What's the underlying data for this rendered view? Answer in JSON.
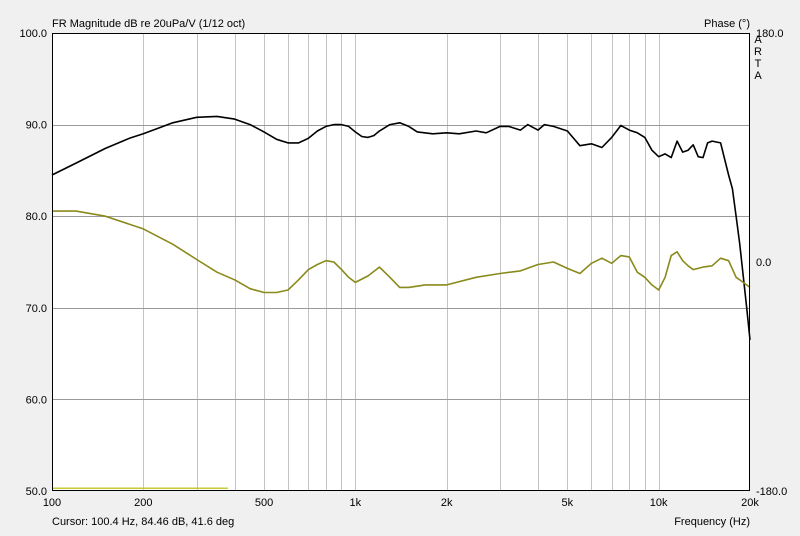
{
  "chart_data": {
    "type": "line",
    "title": "FR Magnitude dB re 20uPa/V (1/12 oct)",
    "right_axis_title": "Phase (°)",
    "watermark": "ARTA",
    "xlabel": "Frequency (Hz)",
    "xscale": "log",
    "xlim": [
      100,
      20000
    ],
    "ylim": [
      50,
      100
    ],
    "y2lim": [
      -180,
      180
    ],
    "grid": true,
    "cursor_readout": "Cursor: 100.4 Hz, 84.46 dB, 41.6 deg",
    "x_ticks": [
      {
        "value": 100,
        "label": "100"
      },
      {
        "value": 200,
        "label": "200"
      },
      {
        "value": 500,
        "label": "500"
      },
      {
        "value": 1000,
        "label": "1k"
      },
      {
        "value": 2000,
        "label": "2k"
      },
      {
        "value": 5000,
        "label": "5k"
      },
      {
        "value": 10000,
        "label": "10k"
      },
      {
        "value": 20000,
        "label": "20k"
      }
    ],
    "y_ticks": [
      {
        "value": 100,
        "label": "100.0"
      },
      {
        "value": 90,
        "label": "90.0"
      },
      {
        "value": 80,
        "label": "80.0"
      },
      {
        "value": 70,
        "label": "70.0"
      },
      {
        "value": 60,
        "label": "60.0"
      },
      {
        "value": 50,
        "label": "50.0"
      }
    ],
    "y2_ticks": [
      {
        "value": 180,
        "label": "180.0"
      },
      {
        "value": 0,
        "label": "0.0"
      },
      {
        "value": -180,
        "label": "-180.0"
      }
    ],
    "colors": {
      "background": "#ffffff",
      "grid": "#c4c4c4",
      "magnitude": "#000000",
      "phase": "#8a8a1c",
      "marker": "#c8c832"
    },
    "series": [
      {
        "axis": "left",
        "color": "#000000",
        "x": [
          100,
          120,
          150,
          180,
          200,
          250,
          300,
          350,
          400,
          450,
          500,
          550,
          600,
          650,
          700,
          750,
          800,
          850,
          900,
          950,
          1000,
          1050,
          1100,
          1150,
          1200,
          1300,
          1400,
          1500,
          1600,
          1800,
          2000,
          2200,
          2500,
          2700,
          3000,
          3200,
          3500,
          3700,
          4000,
          4200,
          4500,
          5000,
          5500,
          6000,
          6500,
          7000,
          7500,
          8000,
          8500,
          9000,
          9500,
          10000,
          10500,
          11000,
          11500,
          12000,
          12500,
          13000,
          13500,
          14000,
          14500,
          15000,
          16000,
          17000,
          17500,
          18000,
          18500,
          19000,
          19500,
          20000
        ],
        "y": [
          84.5,
          85.8,
          87.4,
          88.5,
          89.0,
          90.2,
          90.8,
          90.9,
          90.6,
          90.0,
          89.2,
          88.4,
          88.0,
          88.0,
          88.5,
          89.3,
          89.8,
          90.0,
          90.0,
          89.8,
          89.2,
          88.7,
          88.6,
          88.8,
          89.3,
          90.0,
          90.2,
          89.8,
          89.2,
          89.0,
          89.1,
          89.0,
          89.3,
          89.1,
          89.8,
          89.8,
          89.4,
          90.0,
          89.4,
          90.0,
          89.8,
          89.3,
          87.7,
          87.9,
          87.5,
          88.6,
          89.9,
          89.4,
          89.1,
          88.6,
          87.2,
          86.5,
          86.8,
          86.4,
          88.2,
          87.0,
          87.2,
          87.8,
          86.5,
          86.4,
          88.0,
          88.2,
          88.0,
          84.5,
          83.0,
          80.0,
          77.0,
          73.5,
          70.0,
          66.5
        ]
      },
      {
        "axis": "right",
        "color": "#8a8a1c",
        "x": [
          100,
          120,
          150,
          200,
          250,
          300,
          350,
          400,
          450,
          500,
          550,
          600,
          650,
          700,
          750,
          800,
          850,
          900,
          950,
          1000,
          1100,
          1200,
          1300,
          1400,
          1500,
          1700,
          2000,
          2500,
          3000,
          3500,
          4000,
          4500,
          5000,
          5500,
          6000,
          6500,
          7000,
          7500,
          8000,
          8500,
          9000,
          9500,
          10000,
          10500,
          11000,
          11500,
          12000,
          12500,
          13000,
          14000,
          15000,
          16000,
          17000,
          18000,
          19000,
          20000
        ],
        "y": [
          40.0,
          40.0,
          36.0,
          26.0,
          14.0,
          2.0,
          -8.0,
          -14.0,
          -21.0,
          -24.0,
          -24.0,
          -22.0,
          -14.0,
          -6.0,
          -2.0,
          1.0,
          0.0,
          -6.0,
          -12.0,
          -16.0,
          -11.0,
          -4.0,
          -12.0,
          -20.0,
          -20.0,
          -18.0,
          -18.0,
          -12.0,
          -9.0,
          -7.0,
          -2.0,
          0.0,
          -5.0,
          -9.0,
          -1.0,
          3.0,
          -1.0,
          5.0,
          4.0,
          -8.0,
          -12.0,
          -18.0,
          -22.0,
          -12.0,
          5.0,
          8.0,
          1.0,
          -3.0,
          -6.0,
          -4.0,
          -3.0,
          3.0,
          1.0,
          -12.0,
          -16.0,
          -20.0
        ]
      }
    ],
    "marker_line": {
      "y": 50.3,
      "x_start": 100,
      "x_end": 380
    }
  }
}
